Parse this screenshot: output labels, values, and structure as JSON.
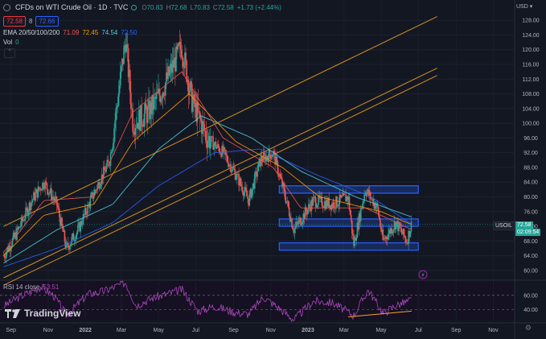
{
  "header": {
    "title": "CFDs on WTI Crude Oil · 1D · TVC",
    "ohlc": [
      {
        "key": "O",
        "val": "70.83"
      },
      {
        "key": "H",
        "val": "72.68"
      },
      {
        "key": "L",
        "val": "70.83"
      },
      {
        "key": "C",
        "val": "72.58"
      }
    ],
    "change": "+1.73 (+2.44%)",
    "sell_price": "72.58",
    "spread": "8",
    "buy_price": "72.66",
    "ema_label": "EMA 20/50/100/200",
    "ema_values": [
      "71.09",
      "72.45",
      "74.54",
      "72.50"
    ],
    "vol_label": "Vol",
    "vol_value": "0",
    "collapse_icon": "chevron-up",
    "currency": "USD"
  },
  "symbol_tag": {
    "name": "USOIL",
    "price": "72.58",
    "countdown": "02:09:54"
  },
  "rsi": {
    "label": "RSI 14 close",
    "value": "53.51",
    "levels": [
      "60.00",
      "40.00"
    ]
  },
  "branding": {
    "logo_text": "TradingView"
  },
  "colors": {
    "bg": "#131722",
    "up": "#26a69a",
    "down": "#ef5350",
    "ema20": "#ef5350",
    "ema50": "#ff9800",
    "ema100": "#4dd0e1",
    "ema200": "#2962ff",
    "channel": "#f5a623",
    "zone": "#2962ff",
    "rsi": "#ab47bc",
    "price_tag": "#26a69a"
  },
  "chart_data": [
    {
      "type": "candlestick",
      "title": "CFDs on WTI Crude Oil · 1D · TVC",
      "x_ticks": [
        "Sep",
        "Nov",
        "2022",
        "Mar",
        "May",
        "Jul",
        "Sep",
        "Nov",
        "2023",
        "Mar",
        "May",
        "Jul",
        "Sep",
        "Nov"
      ],
      "y_ticks": [
        128,
        124,
        120,
        116,
        112,
        108,
        104,
        100,
        96,
        92,
        88,
        84,
        80,
        76,
        72,
        68,
        64,
        60
      ],
      "ylim": [
        58,
        130
      ],
      "close_path": {
        "x": [
          "2021-08-20",
          "2021-09-10",
          "2021-10-05",
          "2021-10-25",
          "2021-11-15",
          "2021-12-01",
          "2021-12-20",
          "2022-01-15",
          "2022-02-10",
          "2022-03-08",
          "2022-03-20",
          "2022-04-15",
          "2022-05-10",
          "2022-06-08",
          "2022-06-25",
          "2022-07-20",
          "2022-08-15",
          "2022-09-05",
          "2022-09-26",
          "2022-10-15",
          "2022-11-05",
          "2022-11-25",
          "2022-12-09",
          "2023-01-10",
          "2023-02-10",
          "2023-03-08",
          "2023-03-17",
          "2023-04-05",
          "2023-04-25",
          "2023-05-04",
          "2023-05-25",
          "2023-06-12",
          "2023-06-20"
        ],
        "y": [
          64,
          70,
          79,
          84,
          78,
          66,
          71,
          81,
          90,
          123,
          100,
          103,
          110,
          121,
          106,
          96,
          92,
          86,
          79,
          90,
          92,
          80,
          71,
          79,
          78,
          80,
          67,
          82,
          77,
          68,
          73,
          68,
          72.58
        ]
      },
      "ema20": {
        "x": [
          "2021-08-20",
          "2021-10-25",
          "2022-01-15",
          "2022-03-20",
          "2022-06-08",
          "2022-08-15",
          "2022-11-05",
          "2022-12-20",
          "2023-04-05",
          "2023-06-20"
        ],
        "y": [
          65,
          79,
          80,
          103,
          114,
          96,
          88,
          77,
          77,
          71.09
        ]
      },
      "ema50": {
        "x": [
          "2021-08-20",
          "2021-10-25",
          "2022-01-15",
          "2022-03-20",
          "2022-06-20",
          "2022-09-05",
          "2022-11-20",
          "2023-01-20",
          "2023-05-01",
          "2023-06-20"
        ],
        "y": [
          64,
          75,
          78,
          95,
          108,
          95,
          88,
          80,
          76,
          72.45
        ]
      },
      "ema100": {
        "x": [
          "2021-08-20",
          "2021-11-15",
          "2022-02-15",
          "2022-05-01",
          "2022-07-10",
          "2022-10-01",
          "2022-12-20",
          "2023-03-20",
          "2023-06-20"
        ],
        "y": [
          62,
          71,
          78,
          93,
          102,
          96,
          87,
          80,
          74.54
        ]
      },
      "ema200": {
        "x": [
          "2021-08-20",
          "2021-11-15",
          "2022-02-15",
          "2022-05-01",
          "2022-08-01",
          "2022-10-15",
          "2023-01-15",
          "2023-04-15",
          "2023-06-20"
        ],
        "y": [
          61,
          66,
          73,
          83,
          92,
          93,
          86,
          80,
          72.5
        ]
      },
      "channel_lines": [
        {
          "x": [
            "2021-08-20",
            "2023-08-01"
          ],
          "y": [
            72,
            129
          ]
        },
        {
          "x": [
            "2021-08-20",
            "2023-08-01"
          ],
          "y": [
            58,
            115
          ]
        },
        {
          "x": [
            "2021-08-20",
            "2023-08-01"
          ],
          "y": [
            56,
            113
          ]
        }
      ],
      "zones": [
        {
          "label": "upper",
          "x": [
            "2022-11-15",
            "2023-07-01"
          ],
          "y": [
            81,
            83
          ]
        },
        {
          "label": "middle",
          "x": [
            "2022-11-15",
            "2023-07-01"
          ],
          "y": [
            72,
            74
          ]
        },
        {
          "label": "lower",
          "x": [
            "2022-11-15",
            "2023-07-01"
          ],
          "y": [
            65.5,
            67.5
          ]
        }
      ]
    },
    {
      "type": "line",
      "title": "RSI 14 close",
      "ylim": [
        25,
        80
      ],
      "levels": [
        60,
        40
      ],
      "x": [
        "2021-08-20",
        "2021-09-15",
        "2021-10-20",
        "2021-11-10",
        "2021-12-01",
        "2022-01-05",
        "2022-02-01",
        "2022-03-08",
        "2022-03-25",
        "2022-04-20",
        "2022-05-15",
        "2022-06-08",
        "2022-07-05",
        "2022-08-01",
        "2022-09-05",
        "2022-09-26",
        "2022-10-20",
        "2022-11-15",
        "2022-12-09",
        "2023-01-10",
        "2023-02-10",
        "2023-03-17",
        "2023-04-10",
        "2023-05-04",
        "2023-05-25",
        "2023-06-20"
      ],
      "y": [
        45,
        58,
        72,
        60,
        32,
        62,
        66,
        78,
        46,
        56,
        62,
        68,
        38,
        45,
        36,
        34,
        58,
        42,
        26,
        52,
        50,
        32,
        68,
        35,
        46,
        53.51
      ],
      "trendline": {
        "x": [
          "2023-03-08",
          "2023-06-20"
        ],
        "y": [
          30,
          38
        ]
      }
    }
  ]
}
